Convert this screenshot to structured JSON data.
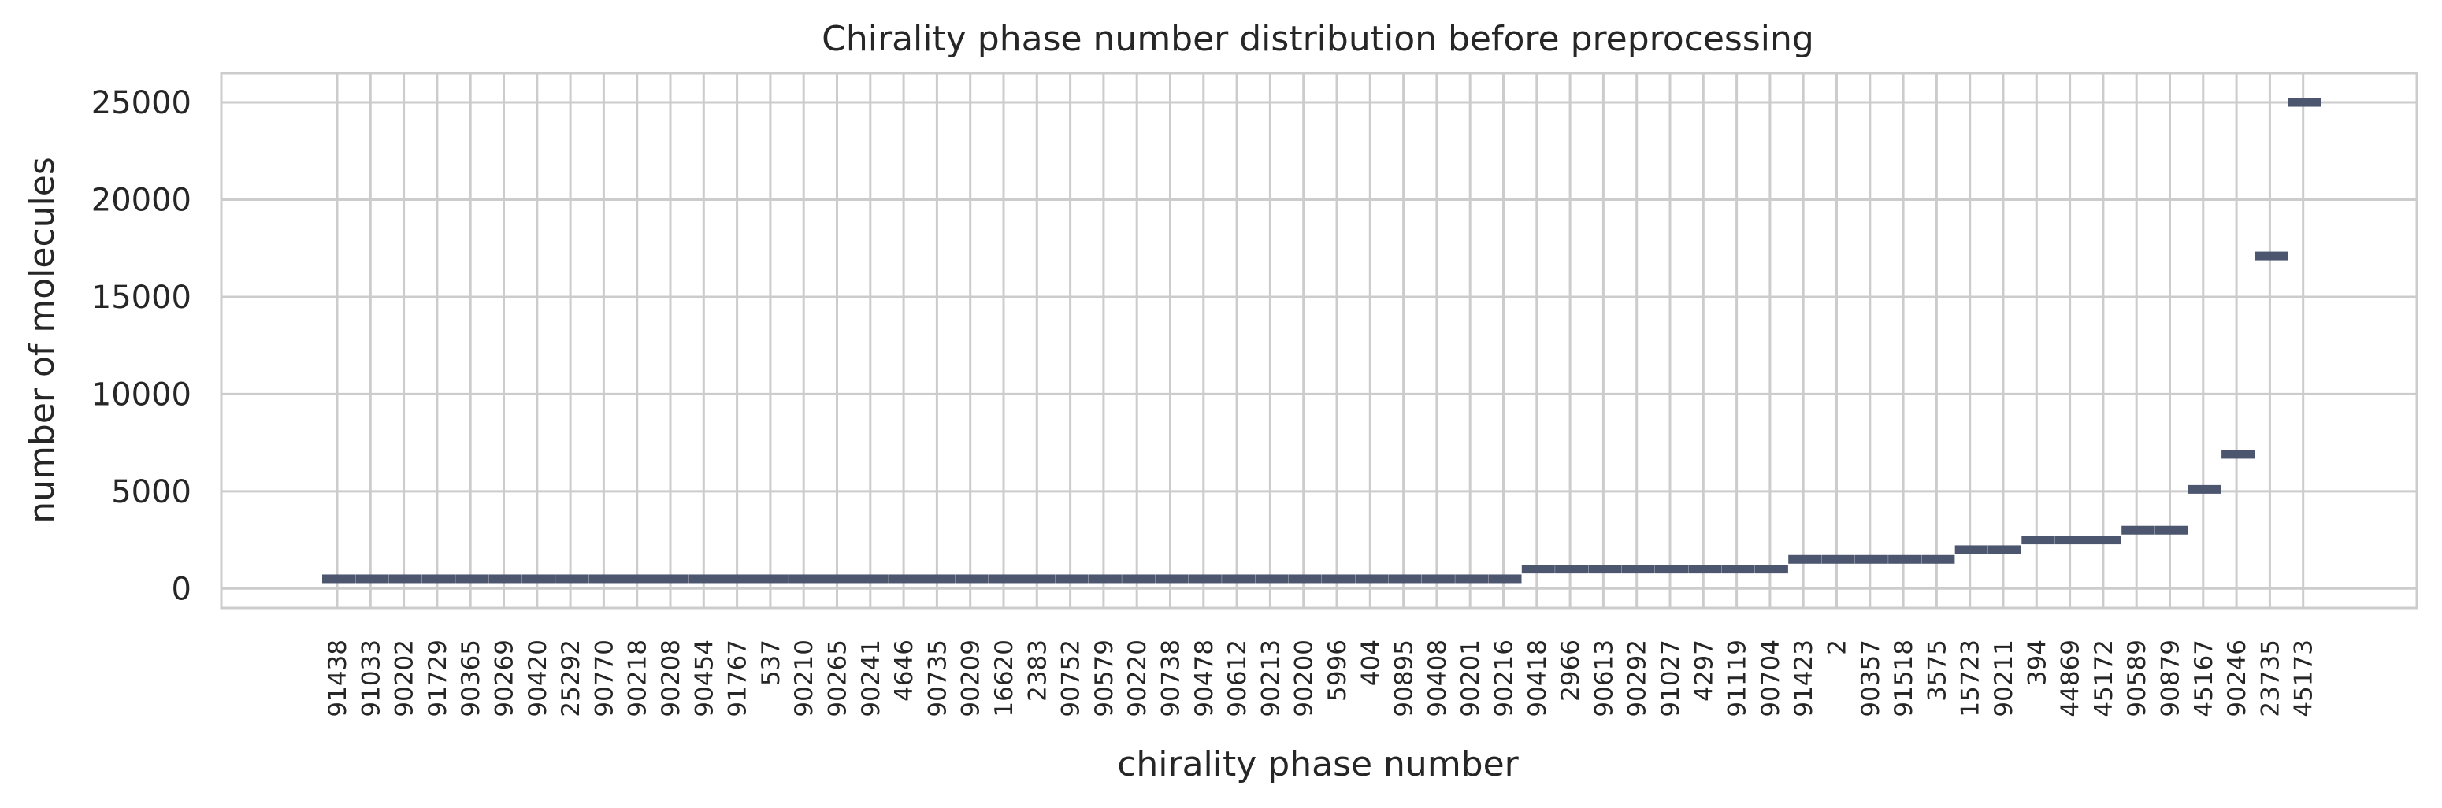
{
  "chart_data": {
    "type": "bar",
    "title": "Chirality phase number distribution before preprocessing",
    "xlabel": "chirality phase number",
    "ylabel": "number of molecules",
    "ylim": [
      -1000,
      26500
    ],
    "yticks": [
      0,
      5000,
      10000,
      15000,
      20000,
      25000
    ],
    "grid": true,
    "categories": [
      "91438",
      "91033",
      "90202",
      "91729",
      "90365",
      "90269",
      "90420",
      "25292",
      "90770",
      "90218",
      "90208",
      "90454",
      "91767",
      "537",
      "90210",
      "90265",
      "90241",
      "4646",
      "90735",
      "90209",
      "16620",
      "2383",
      "90752",
      "90579",
      "90220",
      "90738",
      "90478",
      "90612",
      "90213",
      "90200",
      "5996",
      "404",
      "90895",
      "90408",
      "90201",
      "90216",
      "90418",
      "2966",
      "90613",
      "90292",
      "91027",
      "4297",
      "91119",
      "90704",
      "91423",
      "2",
      "90357",
      "91518",
      "3575",
      "15723",
      "90211",
      "394",
      "44869",
      "45172",
      "90589",
      "90879",
      "45167",
      "90246",
      "23735",
      "45173"
    ],
    "values": [
      500,
      500,
      500,
      500,
      500,
      500,
      500,
      500,
      500,
      500,
      500,
      500,
      500,
      500,
      500,
      500,
      500,
      500,
      500,
      500,
      500,
      500,
      500,
      500,
      500,
      500,
      500,
      500,
      500,
      500,
      500,
      500,
      500,
      500,
      500,
      500,
      1000,
      1000,
      1000,
      1000,
      1000,
      1000,
      1000,
      1000,
      1500,
      1500,
      1500,
      1500,
      1500,
      2000,
      2000,
      2500,
      2500,
      2500,
      3000,
      3000,
      5100,
      6900,
      17100,
      25000
    ],
    "series_color": "#4c566f"
  }
}
